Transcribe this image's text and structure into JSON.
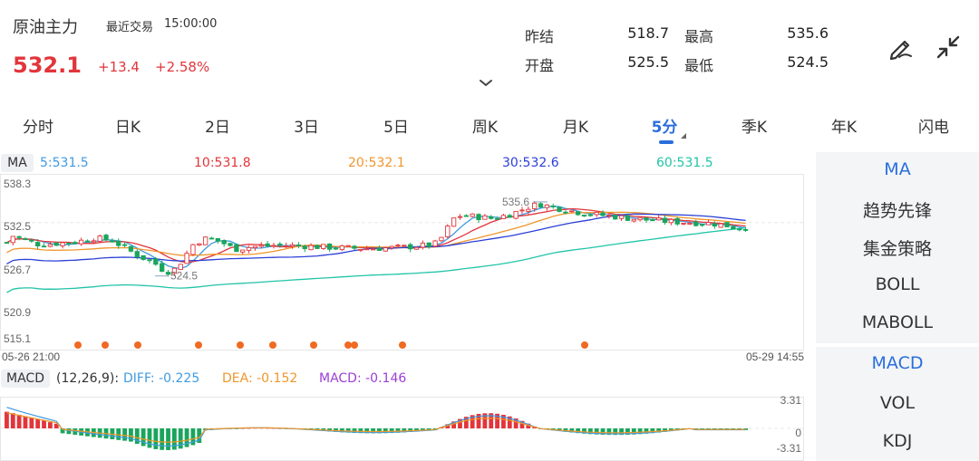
{
  "header": {
    "instrument": "原油主力",
    "last_trade_label": "最近交易",
    "last_trade_time": "15:00:00",
    "price": "532.1",
    "change": "+13.4",
    "change_pct": "+2.58%"
  },
  "stats": {
    "prev_settle_label": "昨结",
    "prev_settle": "518.7",
    "high_label": "最高",
    "high": "535.6",
    "open_label": "开盘",
    "open": "525.5",
    "low_label": "最低",
    "low": "524.5"
  },
  "icons": {
    "draw": "draw-pen-icon",
    "collapse": "collapse-arrows-icon",
    "chevron": "chevron-down-icon"
  },
  "tabs": [
    "分时",
    "日K",
    "2日",
    "3日",
    "5日",
    "周K",
    "月K",
    "5分",
    "季K",
    "年K",
    "闪电"
  ],
  "active_tab": "5分",
  "ma": {
    "badge": "MA",
    "ma5": "5:531.5",
    "ma10": "10:531.8",
    "ma20": "20:532.1",
    "ma30": "30:532.6",
    "ma60": "60:531.5"
  },
  "price_axis": [
    "538.3",
    "532.5",
    "526.7",
    "520.9",
    "515.1"
  ],
  "time_axis": {
    "start": "05-26 21:00",
    "end": "05-29 14:55"
  },
  "annotations": {
    "high": "535.6",
    "low": "524.5"
  },
  "macd": {
    "badge": "MACD",
    "params": "(12,26,9):",
    "diff": "DIFF: -0.225",
    "dea": "DEA: -0.152",
    "macd": "MACD: -0.146",
    "axis_top": "3.31",
    "axis_zero": "0",
    "axis_bottom": "-3.31"
  },
  "side_panel": {
    "main_items": [
      "MA",
      "趋势先锋",
      "集金策略",
      "BOLL",
      "MABOLL"
    ],
    "sub_items": [
      "MACD",
      "VOL",
      "KDJ"
    ],
    "active_main": "MA",
    "active_sub": "MACD"
  },
  "colors": {
    "up": "#e2353b",
    "down": "#1aa55c",
    "accent": "#2a6edc",
    "ma5": "#3f9be0",
    "ma10": "#e2353b",
    "ma20": "#f0962c",
    "ma30": "#2b3fd6",
    "ma60": "#23c4a8",
    "dot": "#f06a23"
  }
}
